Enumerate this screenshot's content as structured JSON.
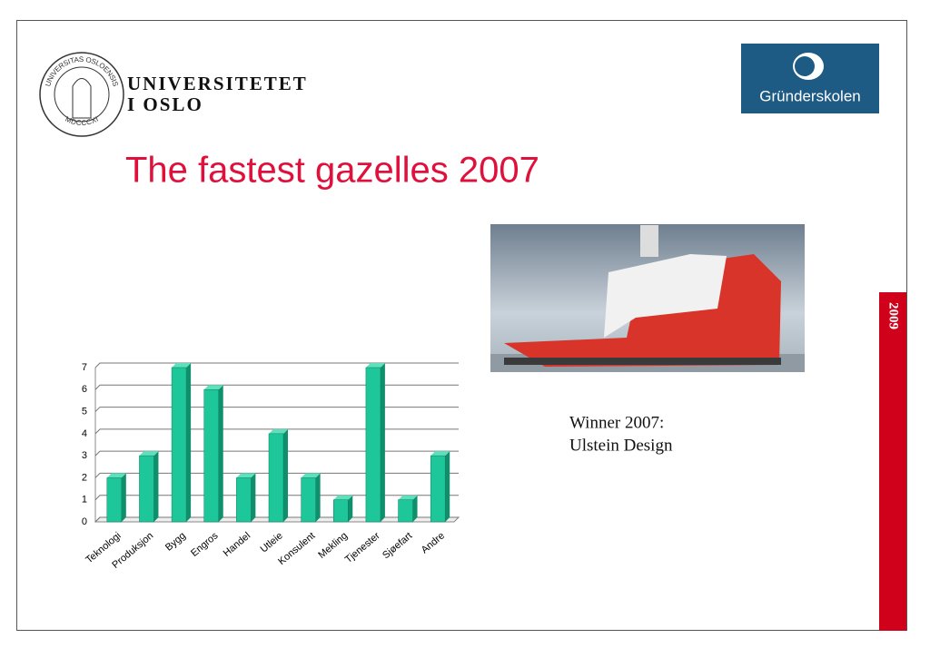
{
  "header": {
    "seal": [
      "UNIVERSITAS OSLOENSIS",
      "MDCCCXI"
    ],
    "university": [
      "UNIVERSITETET",
      "I OSLO"
    ],
    "logo": "Gründerskolen"
  },
  "title": "The fastest gazelles 2007",
  "caption": [
    "Winner 2007:",
    "Ulstein Design"
  ],
  "side_label": "2009",
  "chart_data": {
    "type": "bar",
    "categories": [
      "Teknologi",
      "Produksjon",
      "Bygg",
      "Engros",
      "Handel",
      "Utleie",
      "Konsulent",
      "Mekling",
      "Tjenester",
      "Sjøefart",
      "Andre"
    ],
    "values": [
      2,
      3,
      7,
      6,
      2,
      4,
      2,
      1,
      7,
      1,
      3
    ],
    "color": "#1dc79a",
    "ylim": [
      0,
      7
    ],
    "yticks": [
      0,
      1,
      2,
      3,
      4,
      5,
      6,
      7
    ],
    "grid": true
  }
}
